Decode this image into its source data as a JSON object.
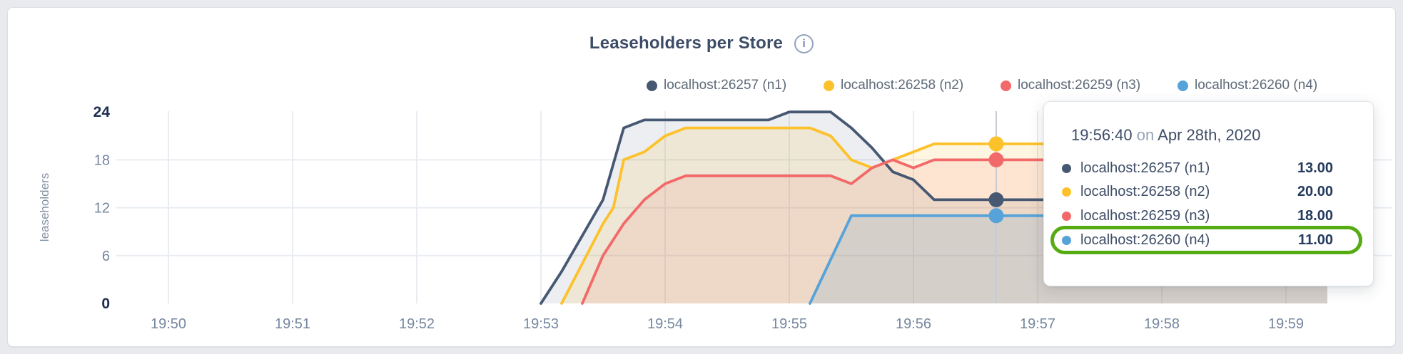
{
  "header": {
    "title": "Leaseholders per Store",
    "info_icon": "i"
  },
  "legend": {
    "items": [
      {
        "label": "localhost:26257 (n1)",
        "color": "#475872"
      },
      {
        "label": "localhost:26258 (n2)",
        "color": "#fdc12b"
      },
      {
        "label": "localhost:26259 (n3)",
        "color": "#f26969"
      },
      {
        "label": "localhost:26260 (n4)",
        "color": "#55a3d9"
      }
    ]
  },
  "chart_data": {
    "type": "area",
    "title": "Leaseholders per Store",
    "xlabel": "",
    "ylabel": "leaseholders",
    "x_ticks": [
      "19:50",
      "19:51",
      "19:52",
      "19:53",
      "19:54",
      "19:55",
      "19:56",
      "19:57",
      "19:58",
      "19:59"
    ],
    "y_ticks": [
      0,
      6,
      12,
      18,
      24
    ],
    "ylim": [
      0,
      24
    ],
    "grid": true,
    "legend_position": "top-right",
    "series": [
      {
        "name": "localhost:26257 (n1)",
        "color": "#475872",
        "fill_opacity": 0.1,
        "points": [
          [
            "19:53:00",
            0
          ],
          [
            "19:53:10",
            4
          ],
          [
            "19:53:30",
            13
          ],
          [
            "19:53:40",
            22
          ],
          [
            "19:53:50",
            23
          ],
          [
            "19:54:50",
            23
          ],
          [
            "19:55:00",
            24
          ],
          [
            "19:55:20",
            24
          ],
          [
            "19:55:30",
            22
          ],
          [
            "19:55:40",
            19.5
          ],
          [
            "19:55:50",
            16.5
          ],
          [
            "19:56:00",
            15.5
          ],
          [
            "19:56:10",
            13
          ],
          [
            "19:59:20",
            13
          ]
        ]
      },
      {
        "name": "localhost:26258 (n2)",
        "color": "#fdc12b",
        "fill_opacity": 0.14,
        "points": [
          [
            "19:53:10",
            0
          ],
          [
            "19:53:30",
            10
          ],
          [
            "19:53:35",
            12
          ],
          [
            "19:53:40",
            18
          ],
          [
            "19:53:50",
            19
          ],
          [
            "19:54:00",
            21
          ],
          [
            "19:54:10",
            22
          ],
          [
            "19:55:10",
            22
          ],
          [
            "19:55:20",
            21
          ],
          [
            "19:55:30",
            18
          ],
          [
            "19:55:40",
            17
          ],
          [
            "19:55:50",
            18
          ],
          [
            "19:56:00",
            19
          ],
          [
            "19:56:10",
            20
          ],
          [
            "19:59:20",
            20
          ]
        ]
      },
      {
        "name": "localhost:26259 (n3)",
        "color": "#f26969",
        "fill_opacity": 0.12,
        "points": [
          [
            "19:53:20",
            0
          ],
          [
            "19:53:30",
            6
          ],
          [
            "19:53:40",
            10
          ],
          [
            "19:53:50",
            13
          ],
          [
            "19:54:00",
            15
          ],
          [
            "19:54:10",
            16
          ],
          [
            "19:55:20",
            16
          ],
          [
            "19:55:30",
            15
          ],
          [
            "19:55:40",
            17
          ],
          [
            "19:55:50",
            18
          ],
          [
            "19:56:00",
            17
          ],
          [
            "19:56:10",
            18
          ],
          [
            "19:59:20",
            18
          ]
        ]
      },
      {
        "name": "localhost:26260 (n4)",
        "color": "#55a3d9",
        "fill_opacity": 0.16,
        "points": [
          [
            "19:55:10",
            0
          ],
          [
            "19:55:30",
            11
          ],
          [
            "19:59:20",
            11
          ]
        ]
      }
    ],
    "hover": {
      "time": "19:56:40",
      "values": [
        13,
        20,
        18,
        11
      ]
    }
  },
  "tooltip": {
    "time": "19:56:40",
    "connector": "on",
    "date": "Apr 28th, 2020",
    "highlight_color": "#55ac12",
    "highlighted_row": 3,
    "rows": [
      {
        "label": "localhost:26257 (n1)",
        "value": "13.00",
        "color": "#475872"
      },
      {
        "label": "localhost:26258 (n2)",
        "value": "20.00",
        "color": "#fdc12b"
      },
      {
        "label": "localhost:26259 (n3)",
        "value": "18.00",
        "color": "#f26969"
      },
      {
        "label": "localhost:26260 (n4)",
        "value": "11.00",
        "color": "#55a3d9"
      }
    ]
  }
}
